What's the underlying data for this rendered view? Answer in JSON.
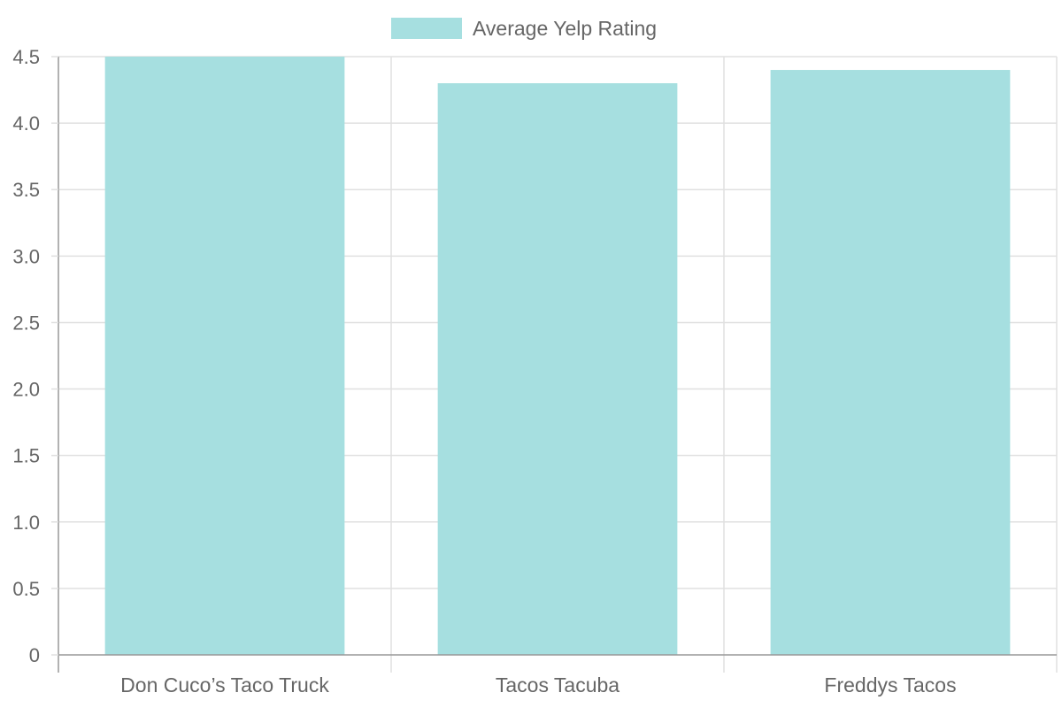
{
  "chart_data": {
    "type": "bar",
    "categories": [
      "Don Cuco’s Taco Truck",
      "Tacos Tacuba",
      "Freddys Tacos"
    ],
    "series": [
      {
        "name": "Average Yelp Rating",
        "values": [
          4.5,
          4.3,
          4.4
        ],
        "color": "#a6dfe0"
      }
    ],
    "ylim": [
      0,
      4.5
    ],
    "yticks": [
      "0",
      "0.5",
      "1.0",
      "1.5",
      "2.0",
      "2.5",
      "3.0",
      "3.5",
      "4.0",
      "4.5"
    ],
    "grid": true,
    "legend": "top-center",
    "colors": {
      "grid": "#e0e0e0",
      "axis": "#999999",
      "text": "#666666"
    }
  }
}
